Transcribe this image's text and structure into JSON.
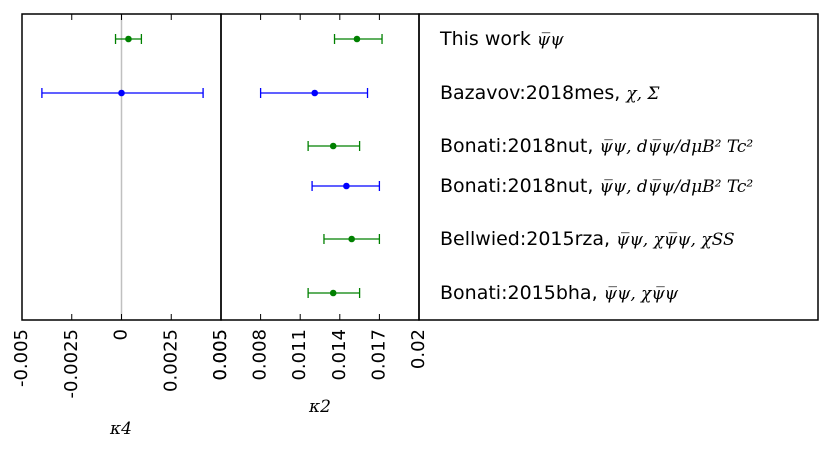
{
  "chart_data": [
    {
      "type": "scatter",
      "panel": "left",
      "xlabel": "κ4",
      "xlim": [
        -0.005,
        0.005
      ],
      "ticks": [
        {
          "value": -0.005,
          "label": "-0.005"
        },
        {
          "value": -0.0025,
          "label": "-0.0025"
        },
        {
          "value": 0,
          "label": "0"
        },
        {
          "value": 0.0025,
          "label": "0.0025"
        },
        {
          "value": 0.005,
          "label": "0.005"
        }
      ],
      "reference_line": {
        "value": 0,
        "color": "#c0c0c0"
      },
      "points": [
        {
          "row": 0,
          "value": 0.00035,
          "low": -0.0003,
          "high": 0.001,
          "color": "#008000"
        },
        {
          "row": 1,
          "value": 0.0,
          "low": -0.004,
          "high": 0.0041,
          "color": "#0000ff"
        }
      ]
    },
    {
      "type": "scatter",
      "panel": "middle",
      "xlabel": "κ2",
      "xlim": [
        0.005,
        0.02
      ],
      "ticks": [
        {
          "value": 0.005,
          "label": "0.005"
        },
        {
          "value": 0.008,
          "label": "0.008"
        },
        {
          "value": 0.011,
          "label": "0.011"
        },
        {
          "value": 0.014,
          "label": "0.014"
        },
        {
          "value": 0.017,
          "label": "0.017"
        },
        {
          "value": 0.02,
          "label": "0.02"
        }
      ],
      "points": [
        {
          "row": 0,
          "value": 0.0153,
          "low": 0.0136,
          "high": 0.0172,
          "color": "#008000"
        },
        {
          "row": 1,
          "value": 0.0121,
          "low": 0.008,
          "high": 0.0161,
          "color": "#0000ff"
        },
        {
          "row": 2,
          "value": 0.0135,
          "low": 0.0116,
          "high": 0.0155,
          "color": "#008000"
        },
        {
          "row": 3,
          "value": 0.0145,
          "low": 0.0119,
          "high": 0.017,
          "color": "#0000ff"
        },
        {
          "row": 4,
          "value": 0.0149,
          "low": 0.0128,
          "high": 0.017,
          "color": "#008000"
        },
        {
          "row": 5,
          "value": 0.0135,
          "low": 0.0116,
          "high": 0.0155,
          "color": "#008000"
        }
      ]
    }
  ],
  "legend": {
    "entries": [
      {
        "plain": "This work ",
        "math": "ψ̅ψ"
      },
      {
        "plain": "Bazavov:2018mes, ",
        "math": "χ, Σ"
      },
      {
        "plain": "Bonati:2018nut, ",
        "math": "ψ̅ψ, dψ̅ψ/dμB² Tc²"
      },
      {
        "plain": "Bonati:2018nut, ",
        "math": "ψ̅ψ, dψ̅ψ/dμB² Tc²"
      },
      {
        "plain": "Bellwied:2015rza, ",
        "math": "ψ̅ψ, χψ̅ψ, χSS"
      },
      {
        "plain": "Bonati:2015bha, ",
        "math": "ψ̅ψ, χψ̅ψ"
      }
    ]
  }
}
